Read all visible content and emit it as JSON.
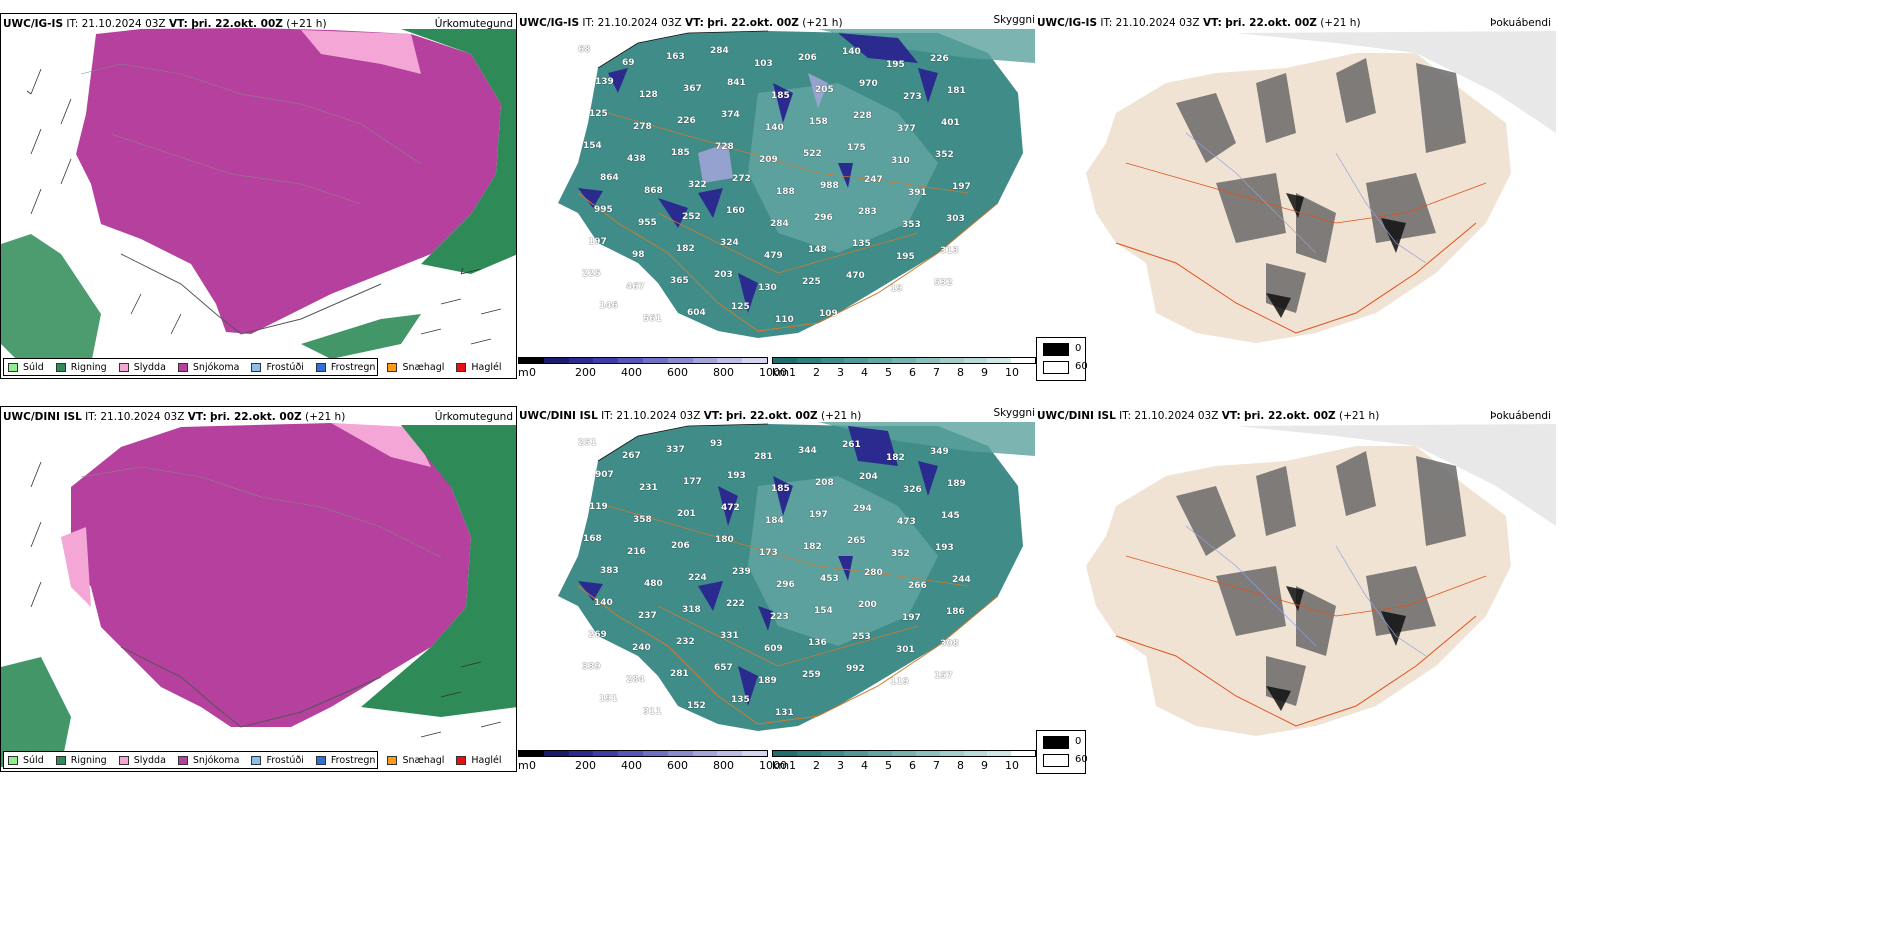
{
  "rows": [
    {
      "id": "top",
      "panels": {
        "precip": {
          "model": "UWC/IG-IS",
          "it_label": "IT:",
          "it": "21.10.2024 03Z",
          "vt_label": "VT:",
          "vt": "þri. 22.okt. 00Z",
          "lead": "(+21 h)",
          "field": "Úrkomutegund"
        },
        "vis": {
          "model": "UWC/IG-IS",
          "it_label": "IT:",
          "it": "21.10.2024 03Z",
          "vt_label": "VT:",
          "vt": "þri. 22.okt. 00Z",
          "lead": "(+21 h)",
          "field": "Skyggni",
          "labels": [
            "68",
            "69",
            "163",
            "284",
            "103",
            "206",
            "140",
            "195",
            "226",
            "139",
            "128",
            "367",
            "841",
            "185",
            "205",
            "970",
            "273",
            "181",
            "125",
            "278",
            "226",
            "374",
            "140",
            "158",
            "228",
            "377",
            "401",
            "154",
            "438",
            "185",
            "728",
            "209",
            "522",
            "175",
            "310",
            "352",
            "864",
            "868",
            "322",
            "272",
            "188",
            "988",
            "247",
            "391",
            "197",
            "995",
            "955",
            "252",
            "160",
            "284",
            "296",
            "283",
            "353",
            "303",
            "197",
            "98",
            "182",
            "324",
            "479",
            "148",
            "135",
            "195",
            "313",
            "225",
            "467",
            "365",
            "203",
            "130",
            "225",
            "470",
            "19",
            "532",
            "146",
            "561",
            "604",
            "125",
            "110",
            "109"
          ]
        },
        "fog": {
          "model": "UWC/IG-IS",
          "it_label": "IT:",
          "it": "21.10.2024 03Z",
          "vt_label": "VT:",
          "vt": "þri. 22.okt. 00Z",
          "lead": "(+21 h)",
          "field": "Þokuábendi"
        }
      }
    },
    {
      "id": "bottom",
      "panels": {
        "precip": {
          "model": "UWC/DINI ISL",
          "it_label": "IT:",
          "it": "21.10.2024 03Z",
          "vt_label": "VT:",
          "vt": "þri. 22.okt. 00Z",
          "lead": "(+21 h)",
          "field": "Úrkomutegund"
        },
        "vis": {
          "model": "UWC/DINI ISL",
          "it_label": "IT:",
          "it": "21.10.2024 03Z",
          "vt_label": "VT:",
          "vt": "þri. 22.okt. 00Z",
          "lead": "(+21 h)",
          "field": "Skyggni",
          "labels": [
            "251",
            "267",
            "337",
            "93",
            "281",
            "344",
            "261",
            "182",
            "349",
            "907",
            "231",
            "177",
            "193",
            "185",
            "208",
            "204",
            "326",
            "189",
            "119",
            "358",
            "201",
            "472",
            "184",
            "197",
            "294",
            "473",
            "145",
            "168",
            "216",
            "206",
            "180",
            "173",
            "182",
            "265",
            "352",
            "193",
            "383",
            "480",
            "224",
            "239",
            "296",
            "453",
            "280",
            "266",
            "244",
            "140",
            "237",
            "318",
            "222",
            "223",
            "154",
            "200",
            "197",
            "186",
            "269",
            "240",
            "232",
            "331",
            "609",
            "136",
            "253",
            "301",
            "308",
            "339",
            "284",
            "281",
            "657",
            "189",
            "259",
            "992",
            "119",
            "157",
            "191",
            "311",
            "152",
            "135",
            "131"
          ]
        },
        "fog": {
          "model": "UWC/DINI ISL",
          "it_label": "IT:",
          "it": "21.10.2024 03Z",
          "vt_label": "VT:",
          "vt": "þri. 22.okt. 00Z",
          "lead": "(+21 h)",
          "field": "Þokuábendi"
        }
      }
    }
  ],
  "precip_legend": [
    {
      "label": "Súld",
      "color": "#90ee90"
    },
    {
      "label": "Rigning",
      "color": "#2e8b57"
    },
    {
      "label": "Slydda",
      "color": "#f4a6d7"
    },
    {
      "label": "Snjókoma",
      "color": "#b5409e"
    },
    {
      "label": "Frostúði",
      "color": "#87bff0"
    },
    {
      "label": "Frostregn",
      "color": "#2f6fd6"
    },
    {
      "label": "Snæhagl",
      "color": "#ff9a1a"
    },
    {
      "label": "Haglél",
      "color": "#e81010"
    }
  ],
  "height_bar": {
    "unit": "m",
    "ticks": [
      "0",
      "200",
      "400",
      "600",
      "800",
      "1000"
    ],
    "colors": [
      "#000000",
      "#1b1b6e",
      "#2b2b8f",
      "#3e3ea8",
      "#5656b8",
      "#7070c4",
      "#8a8acf",
      "#a4a4da",
      "#bcbce4",
      "#d4d4ee"
    ]
  },
  "vis_bar": {
    "unit": "km",
    "ticks": [
      "1",
      "2",
      "3",
      "4",
      "5",
      "6",
      "7",
      "8",
      "9",
      "10"
    ],
    "colors": [
      "#1f6f6c",
      "#2e7f7c",
      "#3d8c89",
      "#4f9996",
      "#62a6a3",
      "#76b3b0",
      "#8bc0bd",
      "#a1cdca",
      "#b8dad8",
      "#d0e7e5",
      "#ffffff"
    ]
  },
  "fog_key": {
    "low": "0",
    "high": "60"
  }
}
